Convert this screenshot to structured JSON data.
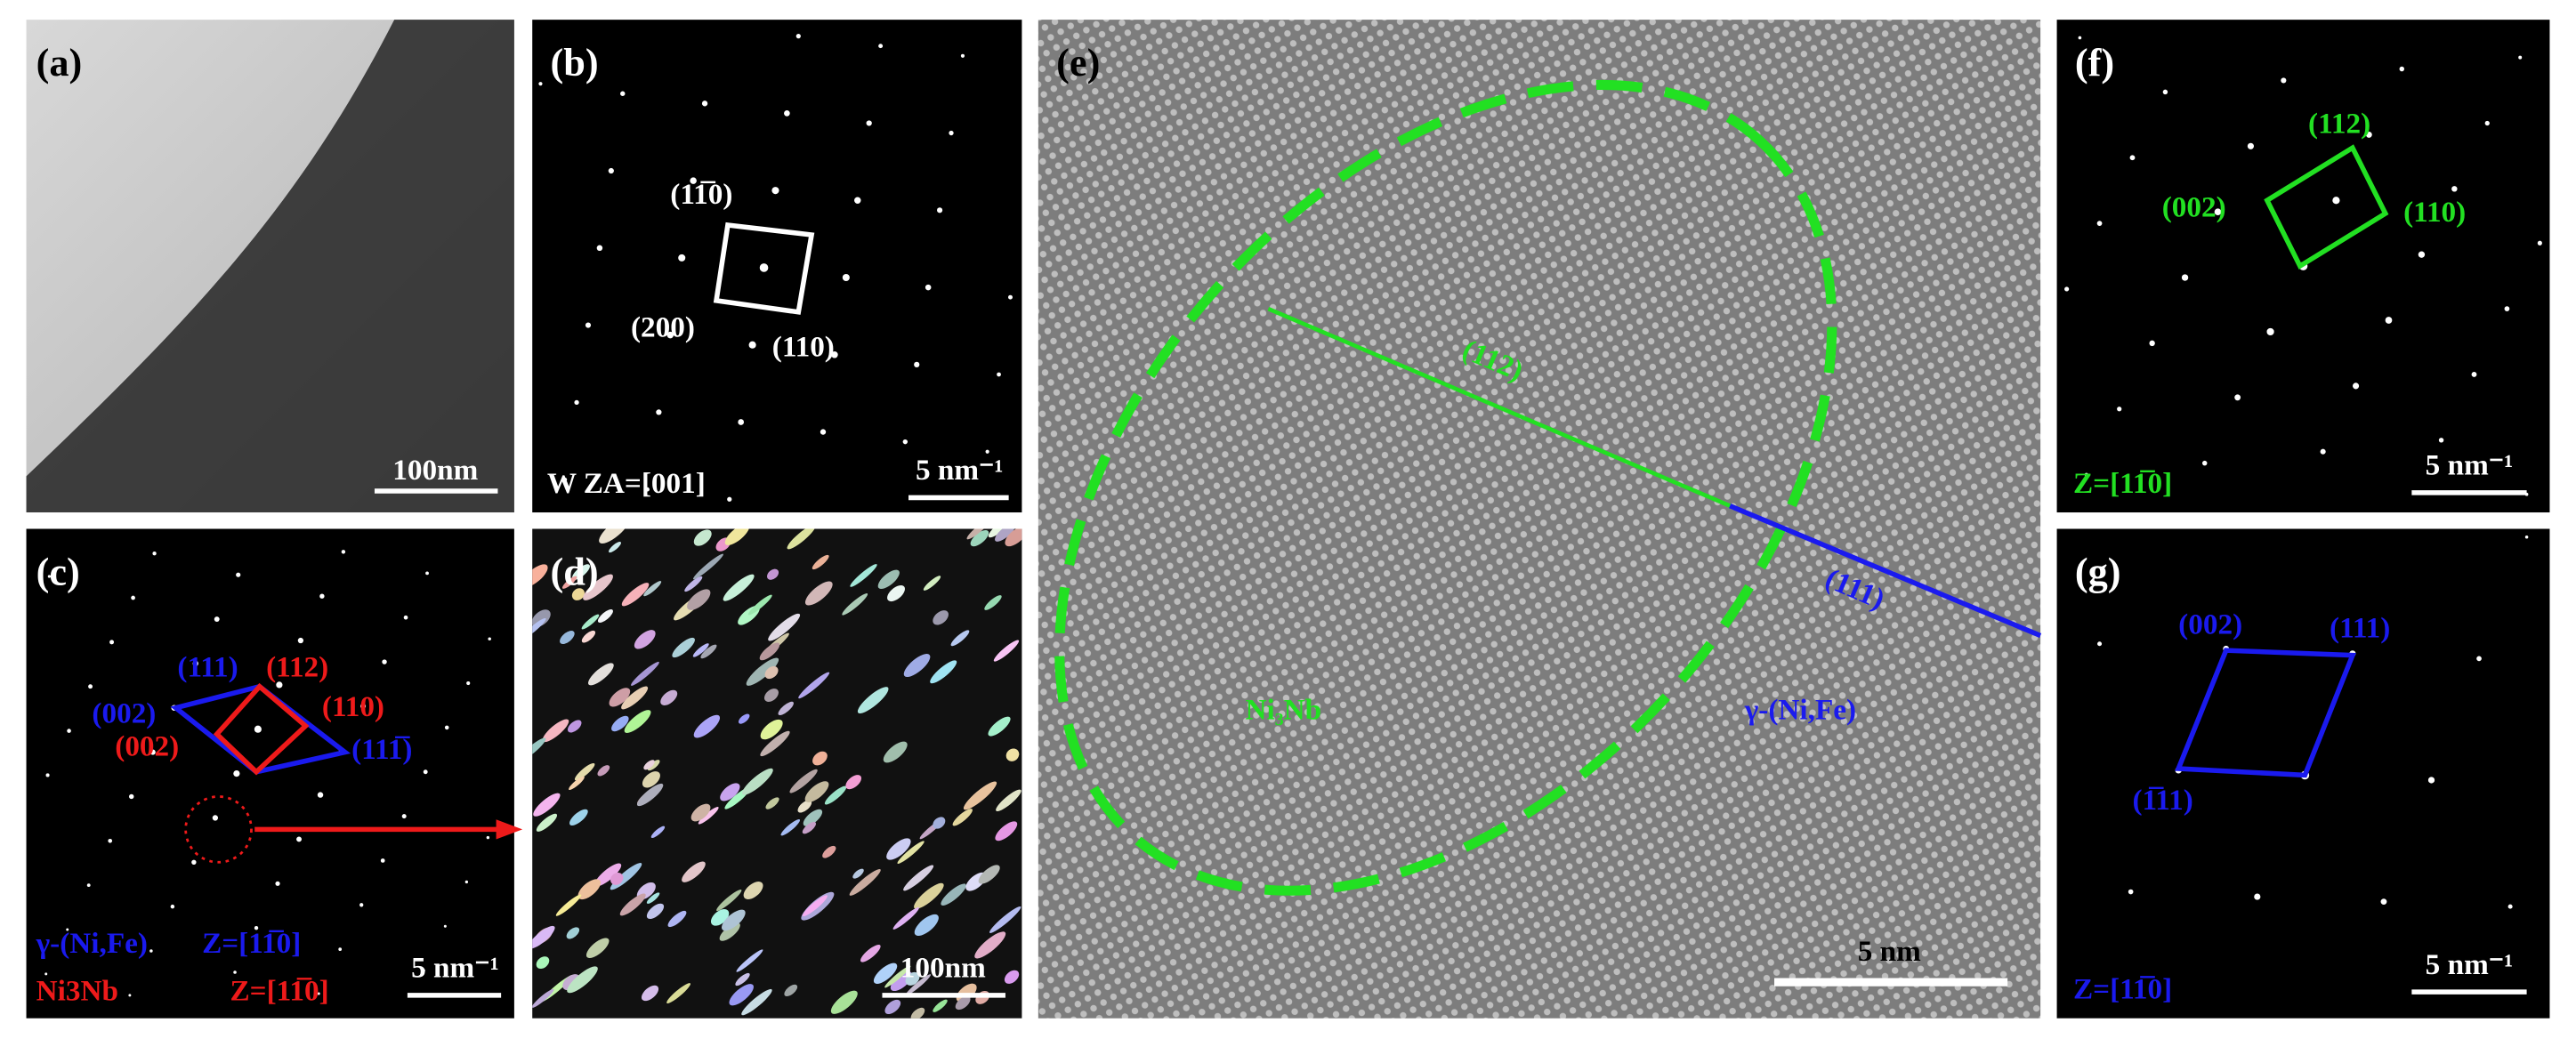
{
  "panels": {
    "a": {
      "label": "(a)",
      "scale_bar": "100nm"
    },
    "b": {
      "label": "(b)",
      "annotations": [
        "(11̅0)",
        "(200)",
        "(110)"
      ],
      "zone_axis": "W ZA=[001]",
      "scale_bar": "5 nm⁻¹"
    },
    "c": {
      "label": "(c)",
      "blue_annotations": [
        "(111)",
        "(002)",
        "(111̅)"
      ],
      "red_annotations": [
        "(112)",
        "(110)",
        "(002)"
      ],
      "phase_1": "γ-(Ni,Fe)",
      "zone_1": "Z=[11̅0]",
      "phase_2": "Ni3Nb",
      "zone_2": "Z=[11̅0]",
      "scale_bar": "5 nm⁻¹"
    },
    "d": {
      "label": "(d)",
      "scale_bar": "100nm"
    },
    "e": {
      "label": "(e)",
      "plane_1": "(112)",
      "plane_2": "(111)",
      "phase_1": "Ni₃Nb",
      "phase_2": "γ-(Ni,Fe)",
      "scale_bar": "5 nm"
    },
    "f": {
      "label": "(f)",
      "annotations": [
        "(112)",
        "(002)",
        "(110)"
      ],
      "zone_axis": "Z=[11̅0]",
      "scale_bar": "5 nm⁻¹"
    },
    "g": {
      "label": "(g)",
      "annotations": [
        "(002)",
        "(111)",
        "(1̅11)"
      ],
      "zone_axis": "Z=[11̅0]",
      "scale_bar": "5 nm⁻¹"
    }
  }
}
